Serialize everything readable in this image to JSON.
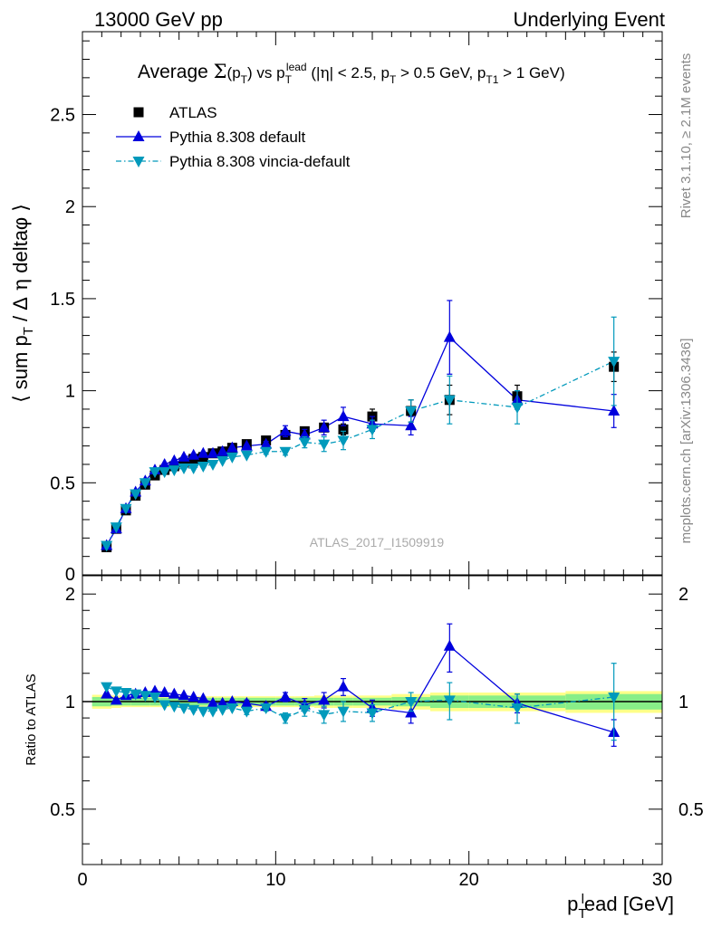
{
  "header": {
    "left": "13000 GeV pp",
    "right": "Underlying Event"
  },
  "side_labels": {
    "rivet": "Rivet 3.1.10, ≥ 2.1M events",
    "mcplots": "mcplots.cern.ch [arXiv:1306.3436]"
  },
  "watermark": "ATLAS_2017_I1509919",
  "colors": {
    "data": "#000000",
    "pythia_default": "#0000dd",
    "pythia_vincia": "#0099bb",
    "band_inner": "#88ee88",
    "band_outer": "#ffff88"
  },
  "chart_data": [
    {
      "type": "scatter",
      "panel": "main",
      "title": "Average Σ(pT) vs pTlead (|η| < 2.5, pT > 0.5 GeV, pT1 > 1 GeV)",
      "ylabel": "⟨ sum pT / Δη deltaφ ⟩",
      "xlim": [
        0,
        30
      ],
      "ylim": [
        0,
        2.95
      ],
      "yticks": [
        0.5,
        1,
        1.5,
        2,
        2.5
      ],
      "ytick_labels": [
        "0.5",
        "1",
        "1.5",
        "2",
        "2.5"
      ],
      "legend_position": "top-left",
      "series": [
        {
          "name": "ATLAS",
          "style": "black squares",
          "x": [
            1.25,
            1.75,
            2.25,
            2.75,
            3.25,
            3.75,
            4.25,
            4.75,
            5.25,
            5.75,
            6.25,
            6.75,
            7.25,
            7.75,
            8.5,
            9.5,
            10.5,
            11.5,
            12.5,
            13.5,
            15,
            17,
            19,
            22.5,
            27.5
          ],
          "y": [
            0.15,
            0.25,
            0.35,
            0.43,
            0.49,
            0.54,
            0.57,
            0.59,
            0.61,
            0.63,
            0.64,
            0.66,
            0.67,
            0.69,
            0.71,
            0.73,
            0.76,
            0.78,
            0.8,
            0.79,
            0.86,
            0.89,
            0.95,
            0.97,
            1.13
          ],
          "yerr": [
            0.005,
            0.005,
            0.005,
            0.005,
            0.005,
            0.005,
            0.005,
            0.005,
            0.005,
            0.005,
            0.005,
            0.005,
            0.01,
            0.01,
            0.01,
            0.01,
            0.015,
            0.015,
            0.02,
            0.03,
            0.04,
            0.06,
            0.08,
            0.06,
            0.08
          ]
        },
        {
          "name": "Pythia 8.308 default",
          "style": "solid line, up triangles",
          "x": [
            1.25,
            1.75,
            2.25,
            2.75,
            3.25,
            3.75,
            4.25,
            4.75,
            5.25,
            5.75,
            6.25,
            6.75,
            7.25,
            7.75,
            8.5,
            9.5,
            10.5,
            11.5,
            12.5,
            13.5,
            15,
            17,
            19,
            22.5,
            27.5
          ],
          "y": [
            0.16,
            0.25,
            0.36,
            0.45,
            0.51,
            0.57,
            0.6,
            0.62,
            0.64,
            0.65,
            0.66,
            0.66,
            0.67,
            0.69,
            0.7,
            0.71,
            0.78,
            0.76,
            0.8,
            0.86,
            0.82,
            0.81,
            1.29,
            0.95,
            0.89
          ],
          "yerr": [
            0.005,
            0.005,
            0.005,
            0.005,
            0.005,
            0.005,
            0.01,
            0.01,
            0.01,
            0.01,
            0.01,
            0.01,
            0.01,
            0.01,
            0.01,
            0.015,
            0.03,
            0.03,
            0.04,
            0.05,
            0.04,
            0.05,
            0.2,
            0.05,
            0.09
          ]
        },
        {
          "name": "Pythia 8.308 vincia-default",
          "style": "dash-dot line, down triangles",
          "x": [
            1.25,
            1.75,
            2.25,
            2.75,
            3.25,
            3.75,
            4.25,
            4.75,
            5.25,
            5.75,
            6.25,
            6.75,
            7.25,
            7.75,
            8.5,
            9.5,
            10.5,
            11.5,
            12.5,
            13.5,
            15,
            17,
            19,
            22.5,
            27.5
          ],
          "y": [
            0.16,
            0.26,
            0.36,
            0.44,
            0.5,
            0.56,
            0.56,
            0.57,
            0.58,
            0.58,
            0.59,
            0.6,
            0.62,
            0.64,
            0.65,
            0.67,
            0.67,
            0.72,
            0.71,
            0.73,
            0.79,
            0.89,
            0.95,
            0.91,
            1.16
          ],
          "yerr": [
            0.005,
            0.005,
            0.005,
            0.005,
            0.005,
            0.005,
            0.01,
            0.01,
            0.01,
            0.01,
            0.01,
            0.01,
            0.01,
            0.01,
            0.01,
            0.015,
            0.02,
            0.03,
            0.04,
            0.05,
            0.05,
            0.06,
            0.13,
            0.09,
            0.24
          ]
        }
      ]
    },
    {
      "type": "line",
      "panel": "ratio",
      "ylabel": "Ratio to ATLAS",
      "xlabel": "pTlead [GeV]",
      "xlim": [
        0,
        30
      ],
      "ylim": [
        0.35,
        2.25
      ],
      "xticks": [
        0,
        10,
        20,
        30
      ],
      "xtick_labels": [
        "0",
        "10",
        "20",
        "30"
      ],
      "yticks": [
        0.5,
        1,
        2
      ],
      "ytick_labels": [
        "0.5",
        "1",
        "2"
      ],
      "log_scale_y": true,
      "reference_band": {
        "x_edges": [
          0.5,
          1.5,
          2,
          2.5,
          3,
          3.5,
          4,
          4.5,
          5,
          5.5,
          6,
          6.5,
          7,
          7.5,
          8,
          9,
          10,
          11,
          12,
          13,
          14,
          16,
          18,
          20,
          25,
          30
        ],
        "inner_halfwidth": [
          0.03,
          0.025,
          0.025,
          0.025,
          0.025,
          0.025,
          0.025,
          0.025,
          0.025,
          0.025,
          0.025,
          0.025,
          0.025,
          0.025,
          0.025,
          0.025,
          0.025,
          0.025,
          0.025,
          0.025,
          0.025,
          0.03,
          0.04,
          0.04,
          0.05
        ],
        "outer_halfwidth": [
          0.045,
          0.04,
          0.035,
          0.035,
          0.035,
          0.035,
          0.035,
          0.035,
          0.035,
          0.035,
          0.035,
          0.035,
          0.035,
          0.035,
          0.035,
          0.035,
          0.035,
          0.035,
          0.04,
          0.04,
          0.04,
          0.05,
          0.06,
          0.06,
          0.07
        ]
      },
      "series": [
        {
          "name": "Pythia 8.308 default",
          "x": [
            1.25,
            1.75,
            2.25,
            2.75,
            3.25,
            3.75,
            4.25,
            4.75,
            5.25,
            5.75,
            6.25,
            6.75,
            7.25,
            7.75,
            8.5,
            9.5,
            10.5,
            11.5,
            12.5,
            13.5,
            15,
            17,
            19,
            22.5,
            27.5
          ],
          "y": [
            1.05,
            1.01,
            1.04,
            1.05,
            1.06,
            1.07,
            1.06,
            1.05,
            1.04,
            1.03,
            1.02,
            0.99,
            0.99,
            1.0,
            0.99,
            0.97,
            1.03,
            0.98,
            1.01,
            1.1,
            0.96,
            0.93,
            1.43,
            0.99,
            0.82
          ],
          "yerr": [
            0.01,
            0.01,
            0.01,
            0.01,
            0.01,
            0.01,
            0.01,
            0.01,
            0.01,
            0.01,
            0.01,
            0.01,
            0.01,
            0.01,
            0.02,
            0.02,
            0.03,
            0.04,
            0.05,
            0.06,
            0.05,
            0.06,
            0.22,
            0.06,
            0.07
          ]
        },
        {
          "name": "Pythia 8.308 vincia-default",
          "x": [
            1.25,
            1.75,
            2.25,
            2.75,
            3.25,
            3.75,
            4.25,
            4.75,
            5.25,
            5.75,
            6.25,
            6.75,
            7.25,
            7.75,
            8.5,
            9.5,
            10.5,
            11.5,
            12.5,
            13.5,
            15,
            17,
            19,
            22.5,
            27.5
          ],
          "y": [
            1.1,
            1.07,
            1.06,
            1.05,
            1.04,
            1.03,
            0.98,
            0.97,
            0.96,
            0.95,
            0.94,
            0.94,
            0.95,
            0.96,
            0.94,
            0.96,
            0.9,
            0.95,
            0.92,
            0.94,
            0.93,
            1.0,
            1.01,
            0.96,
            1.03
          ],
          "yerr": [
            0.01,
            0.01,
            0.01,
            0.01,
            0.01,
            0.01,
            0.01,
            0.01,
            0.01,
            0.01,
            0.01,
            0.01,
            0.01,
            0.01,
            0.02,
            0.02,
            0.03,
            0.04,
            0.05,
            0.06,
            0.05,
            0.06,
            0.12,
            0.09,
            0.25
          ]
        }
      ]
    }
  ]
}
